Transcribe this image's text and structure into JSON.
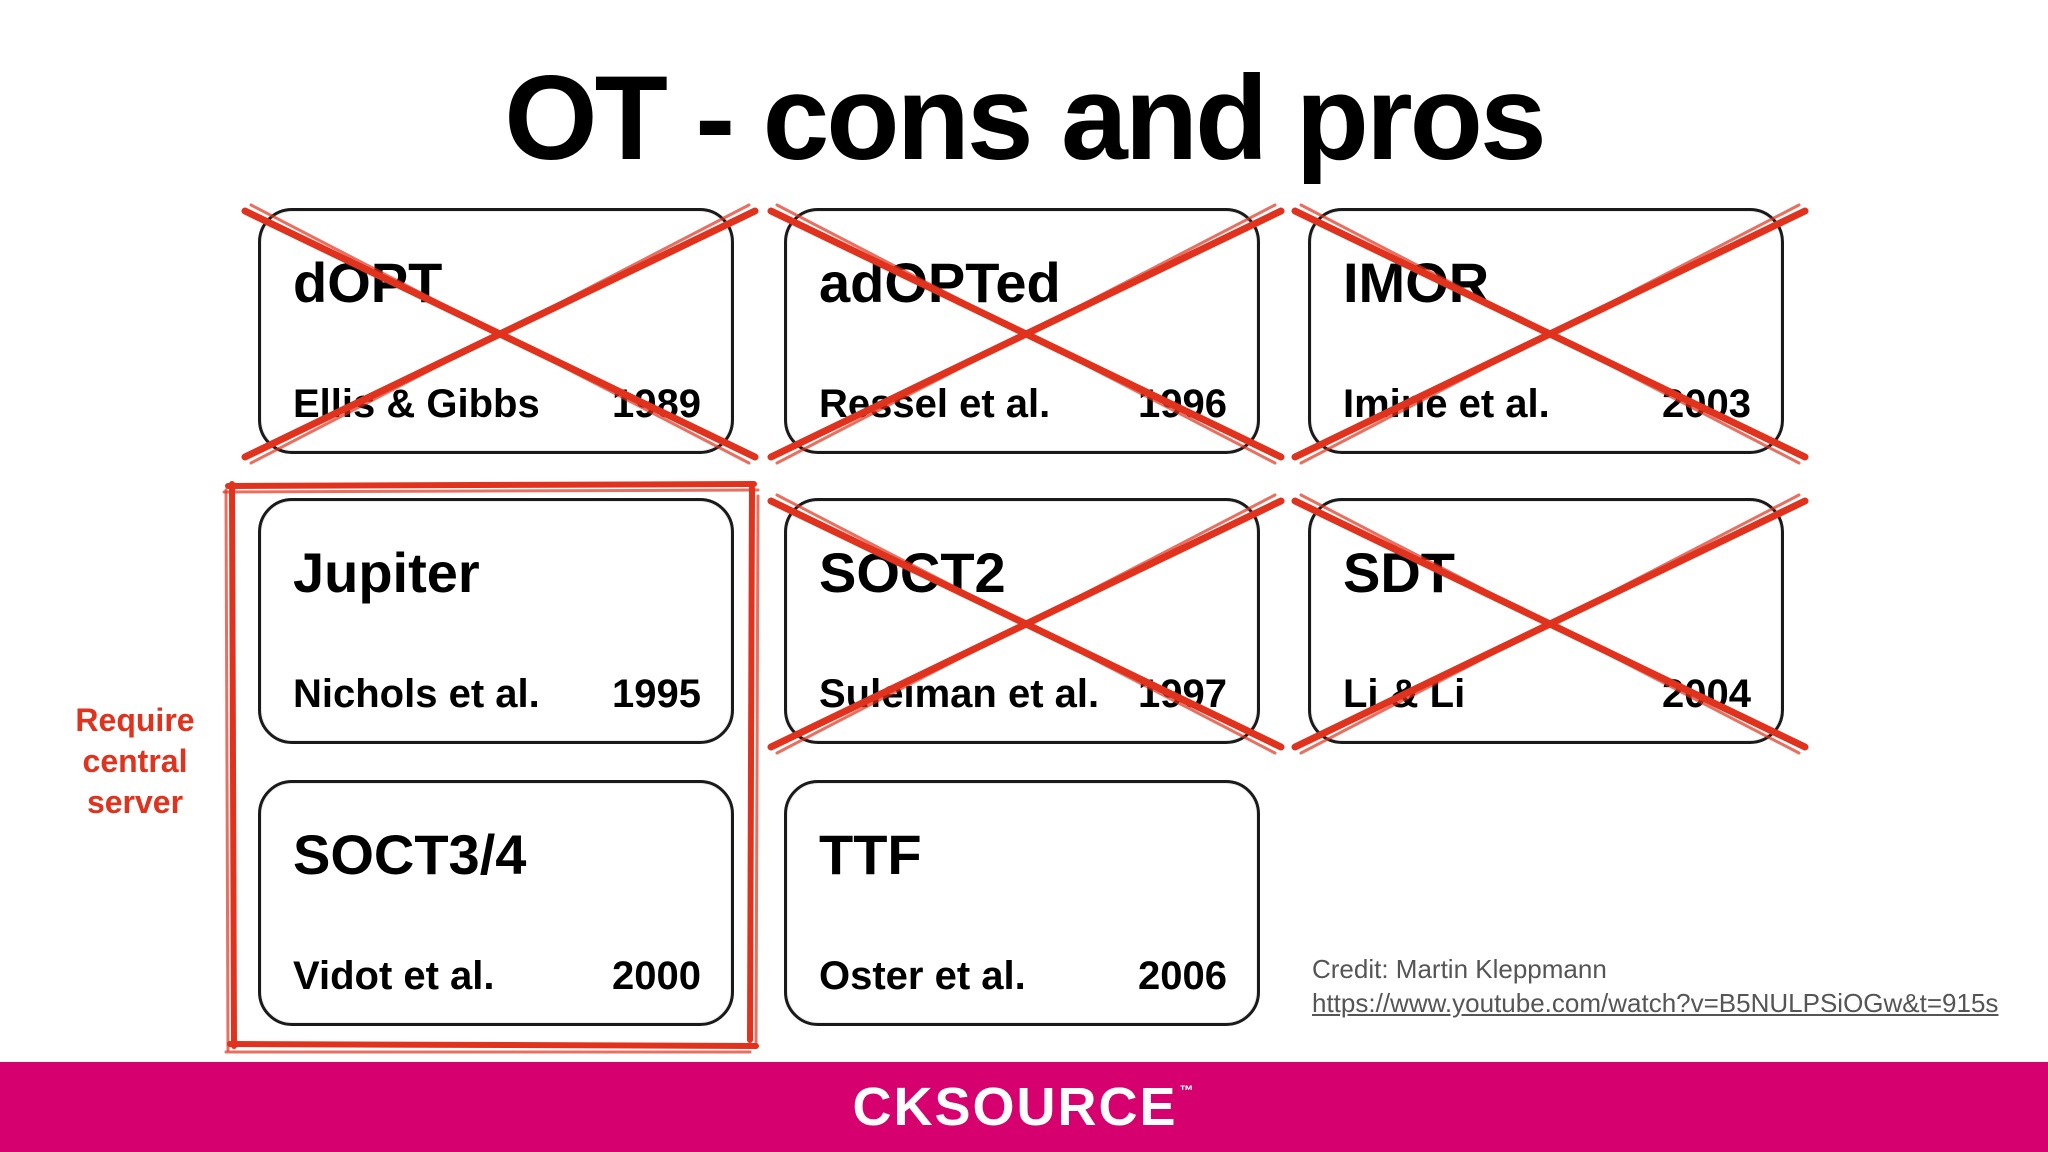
{
  "slide": {
    "title": "OT - cons and pros",
    "cards": [
      {
        "name": "dOPT",
        "author": "Ellis & Gibbs",
        "year": "1989",
        "crossed": true
      },
      {
        "name": "adOPTed",
        "author": "Ressel et al.",
        "year": "1996",
        "crossed": true
      },
      {
        "name": "IMOR",
        "author": "Imine et al.",
        "year": "2003",
        "crossed": true
      },
      {
        "name": "Jupiter",
        "author": "Nichols et al.",
        "year": "1995",
        "crossed": false
      },
      {
        "name": "SOCT2",
        "author": "Suleiman et al.",
        "year": "1997",
        "crossed": true
      },
      {
        "name": "SDT",
        "author": "Li & Li",
        "year": "2004",
        "crossed": true
      },
      {
        "name": "SOCT3/4",
        "author": "Vidot et al.",
        "year": "2000",
        "crossed": false
      },
      {
        "name": "TTF",
        "author": "Oster et al.",
        "year": "2006",
        "crossed": false
      }
    ],
    "annotation": {
      "line1": "Require",
      "line2": "central",
      "line3": "server"
    },
    "credit": {
      "text": "Credit: Martin Kleppmann",
      "url": "https://www.youtube.com/watch?v=B5NULPSiOGw&t=915s"
    }
  },
  "footer": {
    "logo_text": "CKSOURCE",
    "logo_tm": "™",
    "background_color": "#d6006e"
  },
  "colors": {
    "strike_red": "#e0321c",
    "text": "#000000"
  }
}
